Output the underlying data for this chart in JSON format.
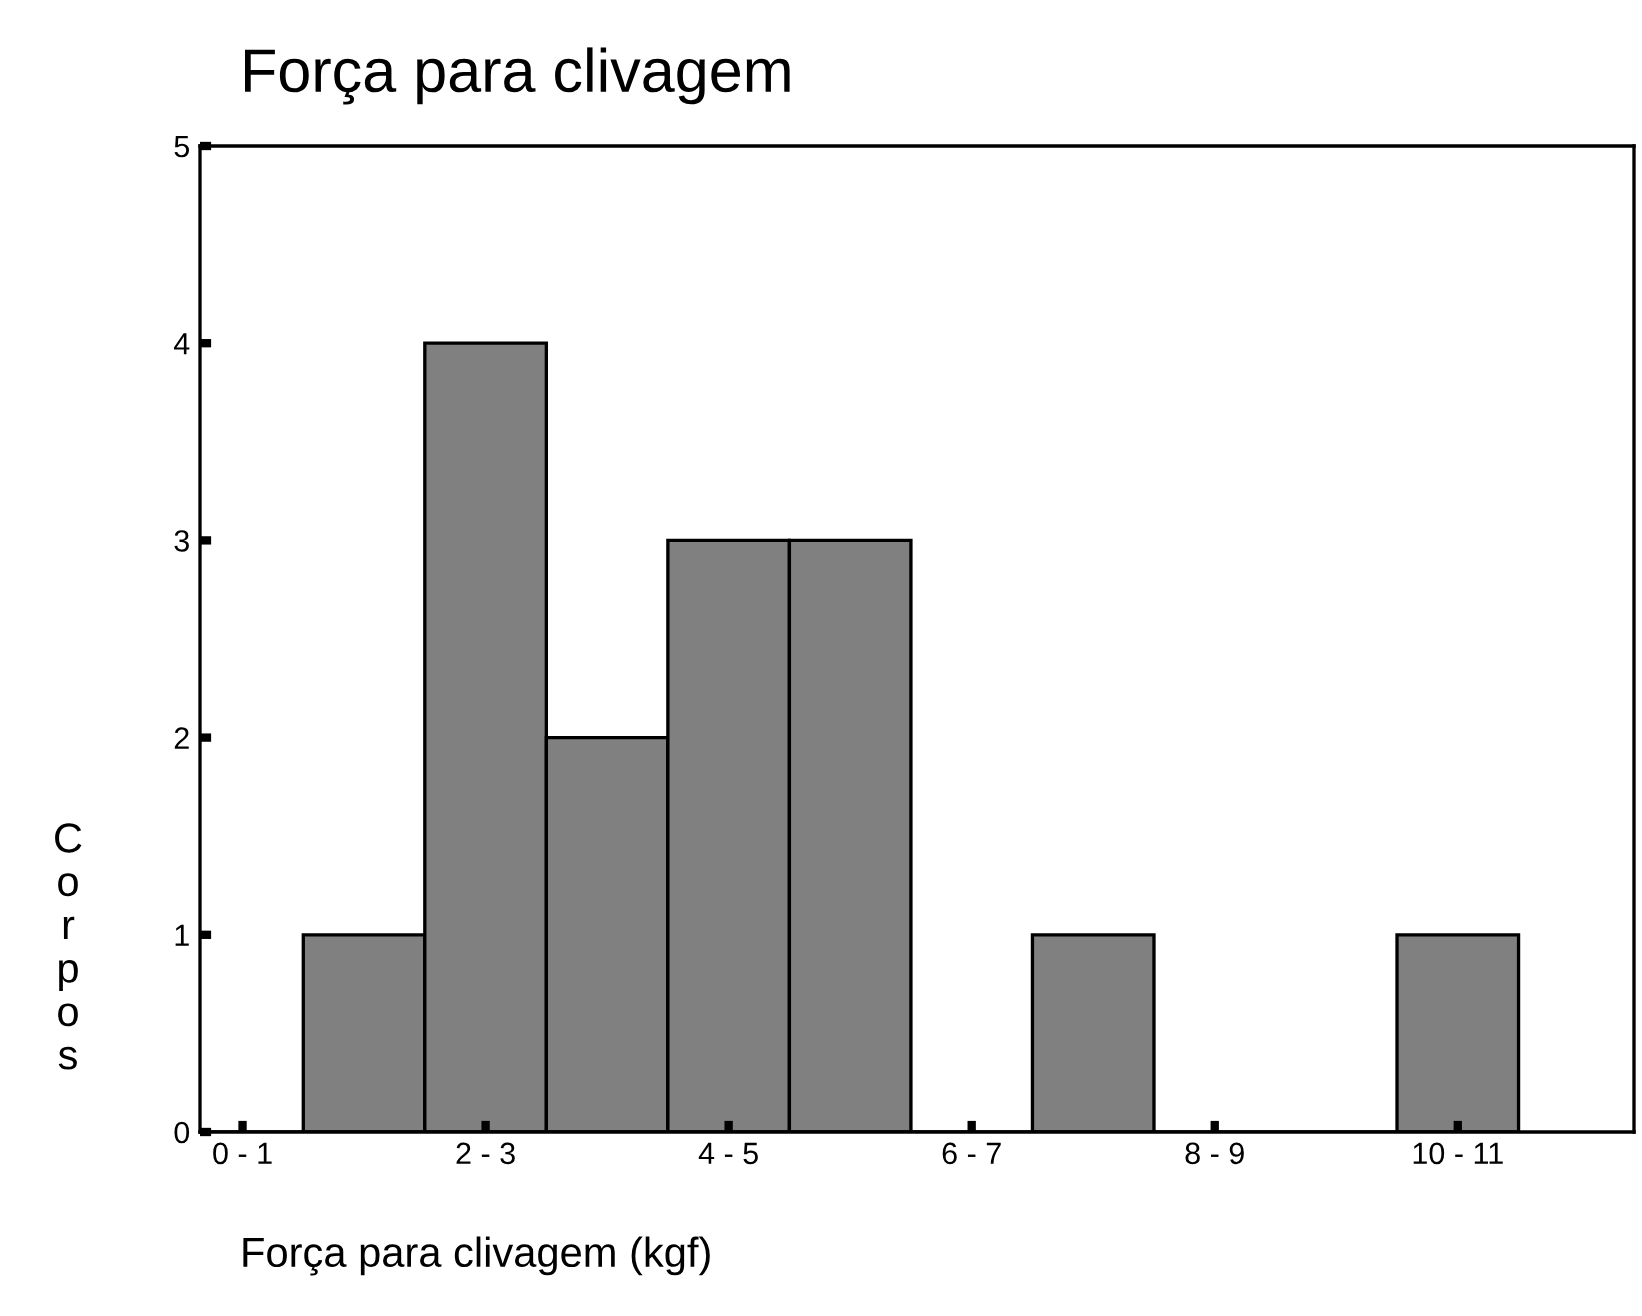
{
  "chart_data": {
    "type": "bar",
    "title": "Força para clivagem",
    "xlabel": "Força para clivagem (kgf)",
    "ylabel": "Corpos",
    "categories": [
      "0 - 1",
      null,
      "2 - 3",
      null,
      "4 - 5",
      null,
      "6 - 7",
      null,
      "8 - 9",
      null,
      "10 - 11"
    ],
    "values": [
      0,
      1,
      4,
      2,
      3,
      3,
      0,
      1,
      0,
      0,
      1
    ],
    "color": "#808080",
    "ylim": [
      0,
      5
    ],
    "yticks": [
      0,
      1,
      2,
      3,
      4,
      5
    ],
    "grid": false,
    "legend": false
  }
}
